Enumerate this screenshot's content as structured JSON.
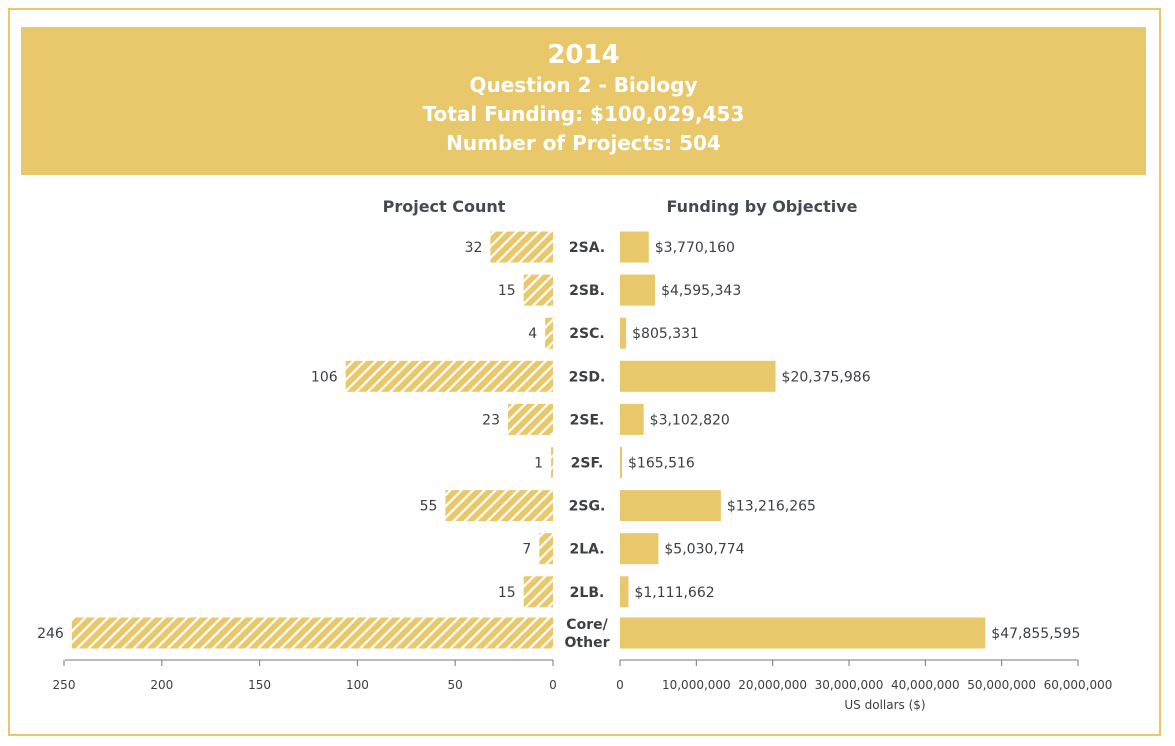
{
  "header": {
    "year": "2014",
    "question": "Question 2 - Biology",
    "total_funding": "Total Funding: $100,029,453",
    "num_projects": "Number of Projects: 504"
  },
  "colors": {
    "accent": "#e8c86a",
    "text": "#3c3f44",
    "hatch_bg": "#ffffff"
  },
  "chart_data": [
    {
      "type": "bar",
      "orientation": "horizontal",
      "title": "Project Count",
      "direction": "reversed",
      "categories": [
        "2SA.",
        "2SB.",
        "2SC.",
        "2SD.",
        "2SE.",
        "2SF.",
        "2SG.",
        "2LA.",
        "2LB.",
        "Core/\nOther"
      ],
      "values": [
        32,
        15,
        4,
        106,
        23,
        1,
        55,
        7,
        15,
        246
      ],
      "value_labels": [
        "32",
        "15",
        "4",
        "106",
        "23",
        "1",
        "55",
        "7",
        "15",
        "246"
      ],
      "xlim": [
        0,
        250
      ],
      "ticks": [
        250,
        200,
        150,
        100,
        50,
        0
      ],
      "tick_labels": [
        "250",
        "200",
        "150",
        "100",
        "50",
        "0"
      ],
      "fill": "hatched"
    },
    {
      "type": "bar",
      "orientation": "horizontal",
      "title": "Funding by Objective",
      "categories": [
        "2SA.",
        "2SB.",
        "2SC.",
        "2SD.",
        "2SE.",
        "2SF.",
        "2SG.",
        "2LA.",
        "2LB.",
        "Core/\nOther"
      ],
      "values": [
        3770160,
        4595343,
        805331,
        20375986,
        3102820,
        165516,
        13216265,
        5030774,
        1111662,
        47855595
      ],
      "value_labels": [
        "$3,770,160",
        "$4,595,343",
        "$805,331",
        "$20,375,986",
        "$3,102,820",
        "$165,516",
        "$13,216,265",
        "$5,030,774",
        "$1,111,662",
        "$47,855,595"
      ],
      "xlim": [
        0,
        60000000
      ],
      "ticks": [
        0,
        10000000,
        20000000,
        30000000,
        40000000,
        50000000,
        60000000
      ],
      "tick_labels": [
        "0",
        "10,000,000",
        "20,000,000",
        "30,000,000",
        "40,000,000",
        "50,000,000",
        "60,000,000"
      ],
      "xlabel": "US dollars ($)",
      "fill": "solid"
    }
  ]
}
